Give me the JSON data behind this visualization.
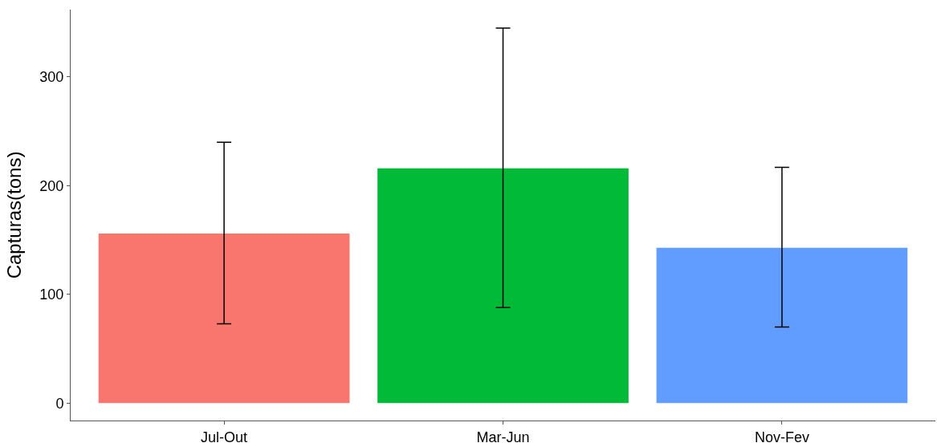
{
  "chart_data": {
    "type": "bar",
    "ylabel": "Capturas(tons)",
    "categories": [
      "Jul-Out",
      "Mar-Jun",
      "Nov-Fev"
    ],
    "values": [
      156,
      216,
      143
    ],
    "colors": [
      "#f8766d",
      "#00ba38",
      "#619cff"
    ],
    "errors": [
      [
        73,
        240
      ],
      [
        88,
        345
      ],
      [
        70,
        217
      ]
    ],
    "ylim": [
      -16,
      362
    ],
    "yticks": [
      0,
      100,
      200,
      300
    ]
  }
}
